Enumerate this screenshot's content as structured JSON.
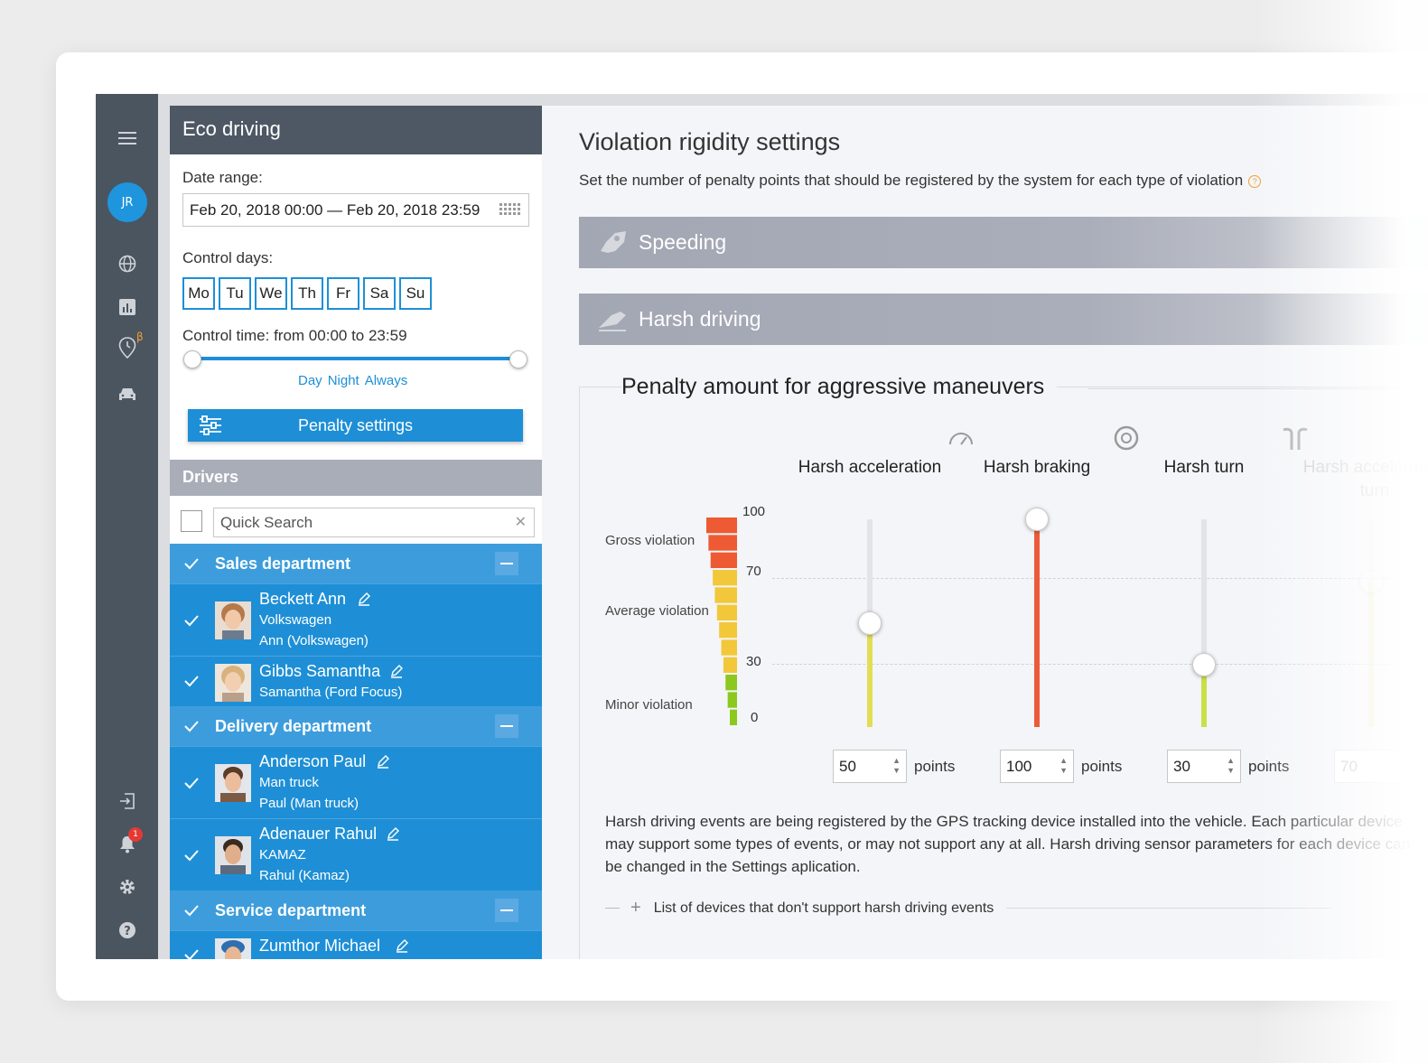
{
  "rail": {
    "avatar_initials": "JR",
    "beta_mark": "β",
    "notifications_count": "1",
    "icons": [
      "hamburger-icon",
      "globe-icon",
      "reports-icon",
      "history-icon",
      "car-icon",
      "logout-icon",
      "bell-icon",
      "gear-icon",
      "help-icon"
    ]
  },
  "left": {
    "title": "Eco driving",
    "date_label": "Date range:",
    "date_value": "Feb 20, 2018 00:00 — Feb 20, 2018 23:59",
    "control_days_label": "Control days:",
    "days": [
      "Mo",
      "Tu",
      "We",
      "Th",
      "Fr",
      "Sa",
      "Su"
    ],
    "control_time_label": "Control time: from 00:00 to 23:59",
    "control_time_range": {
      "start_hours": 0,
      "end_hours": 24
    },
    "presets": [
      "Day",
      "Night",
      "Always"
    ],
    "penalty_button": "Penalty settings",
    "drivers_title": "Drivers",
    "search_placeholder": "Quick Search",
    "groups": [
      {
        "name": "Sales department",
        "drivers": [
          {
            "name": "Beckett Ann",
            "lines": [
              "Volkswagen",
              "Ann (Volkswagen)"
            ]
          },
          {
            "name": "Gibbs Samantha",
            "lines": [
              "Samantha (Ford Focus)"
            ]
          }
        ]
      },
      {
        "name": "Delivery department",
        "drivers": [
          {
            "name": "Anderson Paul",
            "lines": [
              "Man truck",
              "Paul (Man truck)"
            ]
          },
          {
            "name": "Adenauer Rahul",
            "lines": [
              "KAMAZ",
              "Rahul (Kamaz)"
            ]
          }
        ]
      },
      {
        "name": "Service department",
        "drivers": [
          {
            "name": "Zumthor Michael",
            "lines": []
          }
        ]
      }
    ]
  },
  "main": {
    "title": "Violation rigidity settings",
    "description": "Set the number of penalty points that should be registered by the system for each type of violation",
    "sections": [
      "Speeding",
      "Harsh driving"
    ],
    "box_title": "Penalty amount for aggressive maneuvers",
    "scale": {
      "labels": [
        "Gross violation",
        "Average violation",
        "Minor violation"
      ],
      "ticks": [
        "100",
        "70",
        "30",
        "0"
      ],
      "colors": {
        "gross": "#ee5a33",
        "average": "#f2c83a",
        "minor": "#8cc81e"
      }
    },
    "maneuvers": [
      {
        "title": "Harsh acceleration",
        "icon": "speedometer-icon",
        "value": 50,
        "display": "50",
        "fill_color": "#e2dd55"
      },
      {
        "title": "Harsh braking",
        "icon": "brake-icon",
        "value": 100,
        "display": "100",
        "fill_color": "#ec5a3a"
      },
      {
        "title": "Harsh turn",
        "icon": "turn-icon",
        "value": 30,
        "display": "30",
        "fill_color": "#c9e04a"
      },
      {
        "title": "Harsh acceleration turn",
        "icon": "accel-turn-icon",
        "value": 70,
        "display": "70",
        "fill_color": "#e9e49a"
      }
    ],
    "points_label": "points",
    "paragraph": "Harsh driving events are being registered by the GPS tracking device installed into the vehicle. Each particular device may support some types of events, or may not support any at all. Harsh driving sensor parameters for each device can be changed in the Settings aplication.",
    "devices_link": "List of devices that don't support harsh driving events"
  }
}
